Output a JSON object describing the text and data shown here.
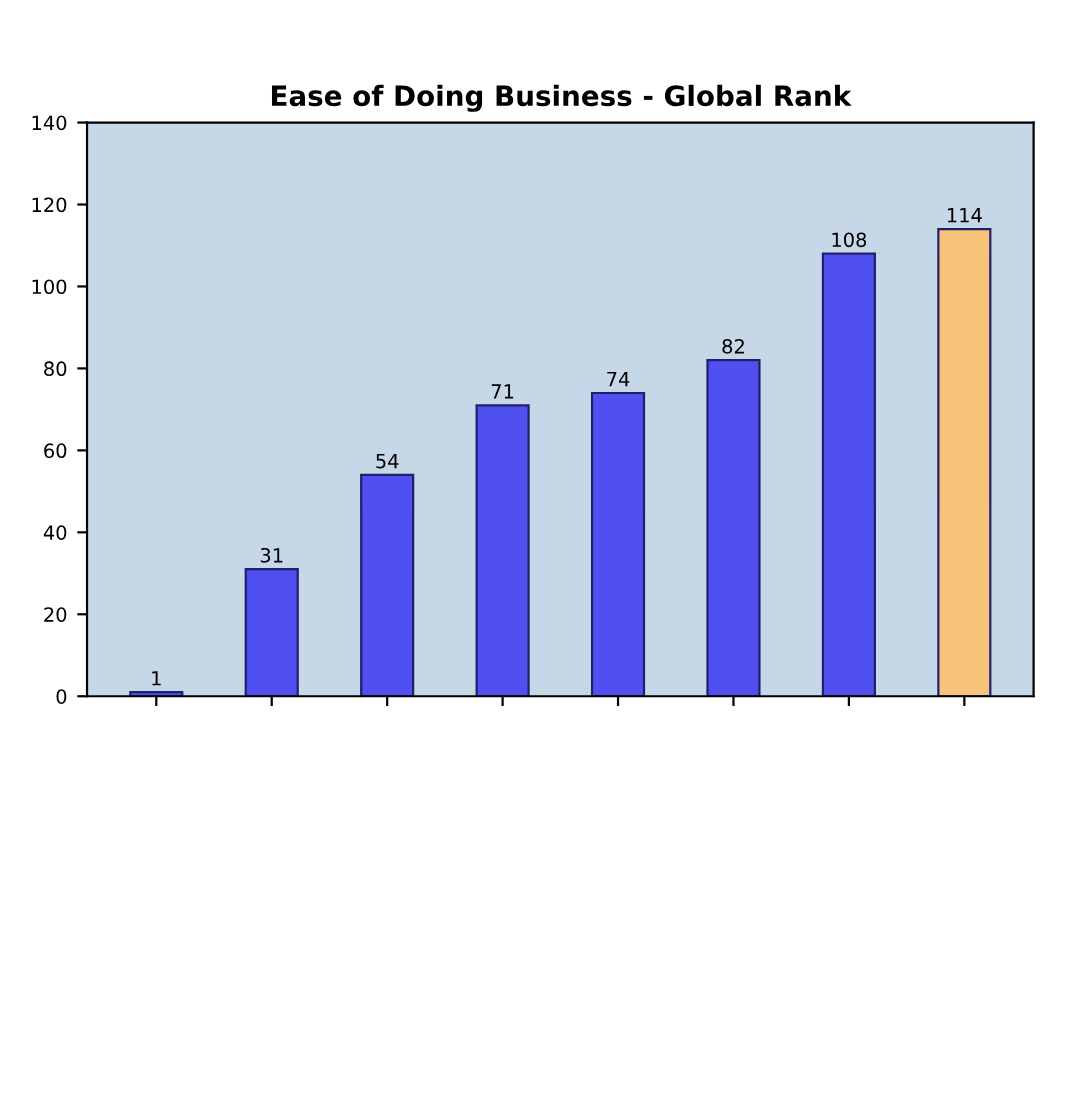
{
  "chart_data": {
    "type": "bar",
    "title": "Ease of Doing Business - Global Rank",
    "categories": [
      null,
      null,
      null,
      null,
      null,
      null,
      null,
      null
    ],
    "values": [
      1,
      31,
      54,
      71,
      74,
      82,
      108,
      114
    ],
    "colors": [
      "#5050f0",
      "#5050f0",
      "#5050f0",
      "#5050f0",
      "#5050f0",
      "#5050f0",
      "#5050f0",
      "#f7c27a"
    ],
    "ylim": [
      0,
      140
    ],
    "yticks": [
      0,
      20,
      40,
      60,
      80,
      100,
      120,
      140
    ],
    "grid": false,
    "data_labels": true
  }
}
